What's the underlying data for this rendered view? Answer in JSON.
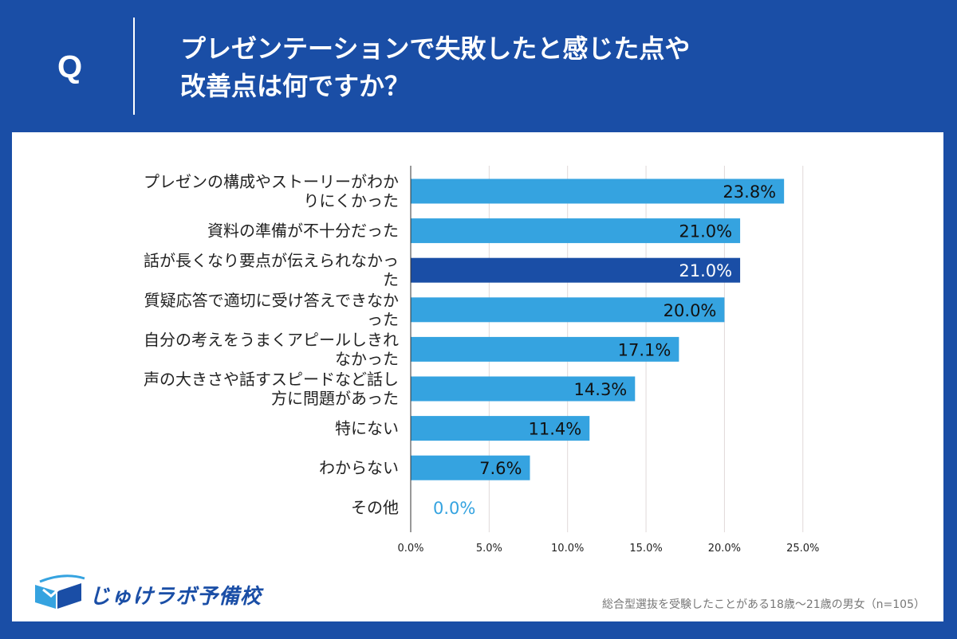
{
  "header": {
    "q_label": "Q",
    "question_line1": "プレゼンテーションで失敗したと感じた点や",
    "question_line2": "改善点は何ですか？"
  },
  "chart_data": {
    "type": "bar",
    "orientation": "horizontal",
    "categories": [
      [
        "プレゼンの構成やストーリーがわか",
        "りにくかった"
      ],
      [
        "資料の準備が不十分だった"
      ],
      [
        "話が長くなり要点が伝えられなかっ",
        "た"
      ],
      [
        "質疑応答で適切に受け答えできなか",
        "った"
      ],
      [
        "自分の考えをうまくアピールしきれ",
        "なかった"
      ],
      [
        "声の大きさや話すスピードなど話し",
        "方に問題があった"
      ],
      [
        "特にない"
      ],
      [
        "わからない"
      ],
      [
        "その他"
      ]
    ],
    "values": [
      23.8,
      21.0,
      21.0,
      20.0,
      17.1,
      14.3,
      11.4,
      7.6,
      0.0
    ],
    "value_labels": [
      "23.8%",
      "21.0%",
      "21.0%",
      "20.0%",
      "17.1%",
      "14.3%",
      "11.4%",
      "7.6%",
      "0.0%"
    ],
    "highlight_index": 2,
    "xlim": [
      0,
      25
    ],
    "xticks": [
      0,
      5,
      10,
      15,
      20,
      25
    ],
    "xtick_labels": [
      "0.0%",
      "5.0%",
      "10.0%",
      "15.0%",
      "20.0%",
      "25.0%"
    ],
    "grid": true,
    "colors": {
      "bar": "#35a3e0",
      "highlight": "#1a4ea6",
      "zero_label": "#35a3e0",
      "grid": "#e0d9d9",
      "axis": "#333333"
    }
  },
  "footer": {
    "logo_text": "じゅけラボ予備校",
    "note": "総合型選抜を受験したことがある18歳～21歳の男女（n=105）"
  }
}
